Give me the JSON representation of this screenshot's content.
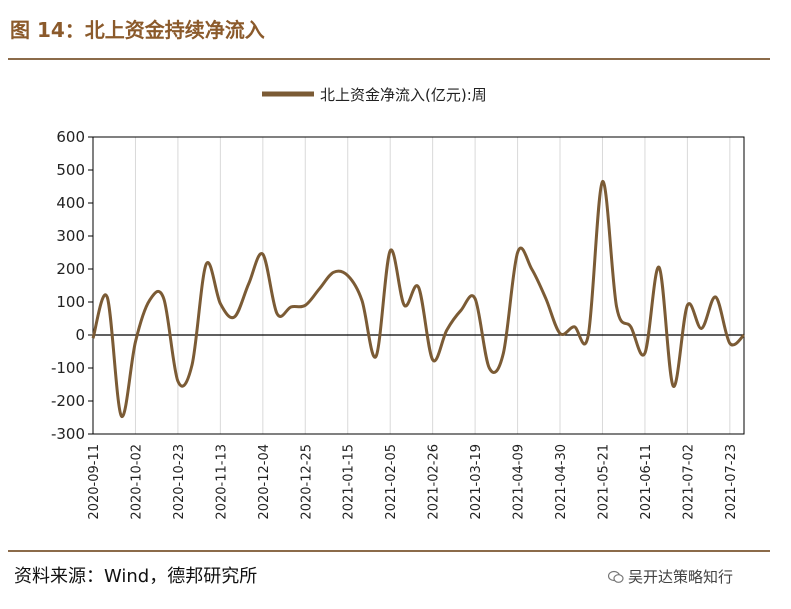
{
  "figure_title": "图 14：北上资金持续净流入",
  "source_text": "资料来源：Wind，德邦研究所",
  "watermark": {
    "text": "吴开达策略知行",
    "icon": "wechat-icon"
  },
  "colors": {
    "line": "#7B5B35",
    "accent": "#8B5A2B",
    "axis": "#000000",
    "grid": "#D9D9D9"
  },
  "chart_data": {
    "type": "line",
    "title": "",
    "xlabel": "",
    "ylabel": "",
    "ylim": [
      -300,
      600
    ],
    "yticks": [
      -300,
      -200,
      -100,
      0,
      100,
      200,
      300,
      400,
      500,
      600
    ],
    "grid": true,
    "legend_position": "top",
    "x_tick_labels": [
      "2020-09-11",
      "2020-10-02",
      "2020-10-23",
      "2020-11-13",
      "2020-12-04",
      "2020-12-25",
      "2021-01-15",
      "2021-02-05",
      "2021-02-26",
      "2021-03-19",
      "2021-04-09",
      "2021-04-30",
      "2021-05-21",
      "2021-06-11",
      "2021-07-02",
      "2021-07-23"
    ],
    "x": [
      "2020-09-11",
      "2020-09-18",
      "2020-09-25",
      "2020-10-02",
      "2020-10-09",
      "2020-10-16",
      "2020-10-23",
      "2020-10-30",
      "2020-11-06",
      "2020-11-13",
      "2020-11-20",
      "2020-11-27",
      "2020-12-04",
      "2020-12-11",
      "2020-12-18",
      "2020-12-25",
      "2021-01-01",
      "2021-01-08",
      "2021-01-15",
      "2021-01-22",
      "2021-01-29",
      "2021-02-05",
      "2021-02-12",
      "2021-02-19",
      "2021-02-26",
      "2021-03-05",
      "2021-03-12",
      "2021-03-19",
      "2021-03-26",
      "2021-04-02",
      "2021-04-09",
      "2021-04-16",
      "2021-04-23",
      "2021-04-30",
      "2021-05-07",
      "2021-05-14",
      "2021-05-21",
      "2021-05-28",
      "2021-06-04",
      "2021-06-11",
      "2021-06-18",
      "2021-06-25",
      "2021-07-02",
      "2021-07-09",
      "2021-07-16",
      "2021-07-23",
      "2021-07-30"
    ],
    "series": [
      {
        "name": "北上资金净流入(亿元):周",
        "values": [
          -10,
          115,
          -245,
          -20,
          105,
          110,
          -140,
          -90,
          215,
          95,
          55,
          155,
          245,
          65,
          85,
          90,
          140,
          190,
          180,
          105,
          -65,
          255,
          90,
          145,
          -75,
          15,
          75,
          110,
          -100,
          -55,
          250,
          200,
          110,
          5,
          25,
          0,
          465,
          85,
          25,
          -55,
          205,
          -155,
          90,
          20,
          115,
          -25,
          0
        ]
      }
    ]
  }
}
